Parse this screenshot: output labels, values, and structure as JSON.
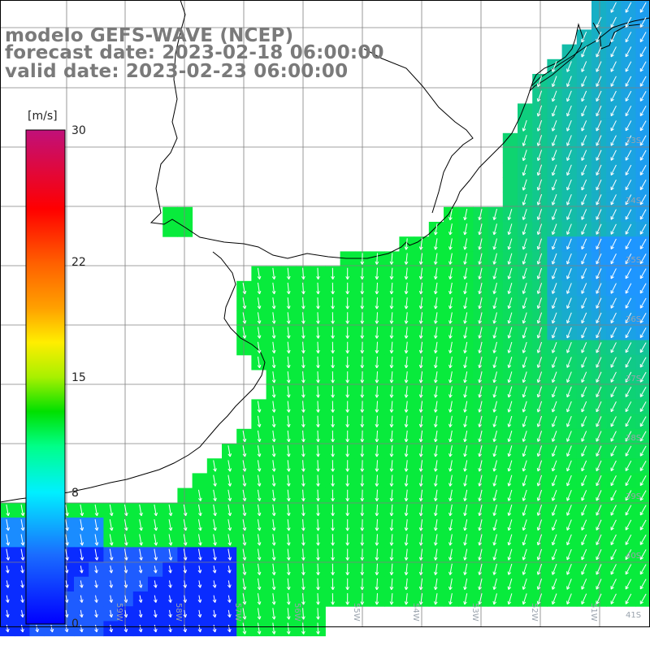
{
  "title": {
    "line1": "modelo GEFS-WAVE (NCEP)",
    "line2": "forecast date: 2023-02-18 06:00:00",
    "line3": "valid date: 2023-02-23 06:00:00"
  },
  "colorbar": {
    "unit": "[m/s]",
    "ticks": [
      {
        "label": "30",
        "value": 30
      },
      {
        "label": "22",
        "value": 22
      },
      {
        "label": "15",
        "value": 15
      },
      {
        "label": "8",
        "value": 8
      },
      {
        "label": "0",
        "value": 0
      }
    ],
    "range": [
      0,
      30
    ]
  },
  "coord_labels": {
    "right": [
      "33S",
      "34S",
      "35S",
      "36S",
      "37S",
      "38S",
      "39S",
      "40S",
      "41S"
    ],
    "bottom": [
      "59W",
      "58W",
      "57W",
      "56W",
      "55W",
      "54W",
      "53W",
      "52W",
      "51W"
    ]
  },
  "colors": {
    "land": "#ffffff",
    "grid": "#808080",
    "coast": "#000000",
    "arrow": "#ffffff",
    "title": "#7a7a7a"
  }
}
